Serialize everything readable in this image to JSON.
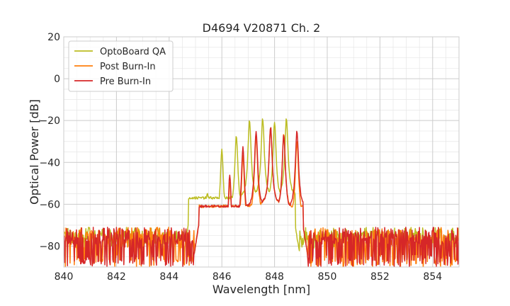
{
  "chart_data": {
    "type": "line",
    "title": "D4694 V20871 Ch. 2",
    "xlabel": "Wavelength [nm]",
    "ylabel": "Optical Power [dB]",
    "xlim": [
      840,
      855
    ],
    "ylim": [
      -90,
      20
    ],
    "xticks": [
      840,
      842,
      844,
      846,
      848,
      850,
      852,
      854
    ],
    "xtick_labels": [
      "840",
      "842",
      "844",
      "846",
      "848",
      "850",
      "852",
      "854"
    ],
    "yticks": [
      20,
      0,
      -20,
      -40,
      -60,
      -80
    ],
    "ytick_labels": [
      "20",
      "0",
      "−20",
      "−40",
      "−60",
      "−80"
    ],
    "grid": true,
    "legend_position": "top-left",
    "series": [
      {
        "name": "OptoBoard QA",
        "color": "#bcbd22",
        "noise_floor": [
          -79,
          -71
        ],
        "peaks": [
          {
            "x": 844.85,
            "y": -64
          },
          {
            "x": 845.45,
            "y": -54
          },
          {
            "x": 846.0,
            "y": -34
          },
          {
            "x": 846.55,
            "y": -27
          },
          {
            "x": 847.05,
            "y": -20
          },
          {
            "x": 847.55,
            "y": -19
          },
          {
            "x": 848.0,
            "y": -21
          },
          {
            "x": 848.45,
            "y": -19
          }
        ],
        "band": [
          844.6,
          848.9
        ]
      },
      {
        "name": "Post Burn-In",
        "color": "#ff7f0e",
        "noise_floor": [
          -90,
          -71
        ],
        "peaks": [
          {
            "x": 845.25,
            "y": -66
          },
          {
            "x": 845.75,
            "y": -61
          },
          {
            "x": 846.3,
            "y": -49
          },
          {
            "x": 846.8,
            "y": -37
          },
          {
            "x": 847.3,
            "y": -28
          },
          {
            "x": 847.85,
            "y": -23
          },
          {
            "x": 848.35,
            "y": -26
          },
          {
            "x": 848.85,
            "y": -30
          }
        ],
        "band": [
          845.0,
          849.2
        ]
      },
      {
        "name": "Pre Burn-In",
        "color": "#d62728",
        "noise_floor": [
          -90,
          -71
        ],
        "peaks": [
          {
            "x": 845.25,
            "y": -66
          },
          {
            "x": 845.75,
            "y": -60
          },
          {
            "x": 846.3,
            "y": -46
          },
          {
            "x": 846.8,
            "y": -33
          },
          {
            "x": 847.3,
            "y": -25
          },
          {
            "x": 847.85,
            "y": -23
          },
          {
            "x": 848.35,
            "y": -27
          },
          {
            "x": 848.85,
            "y": -25
          }
        ],
        "band": [
          845.0,
          849.2
        ]
      }
    ]
  }
}
